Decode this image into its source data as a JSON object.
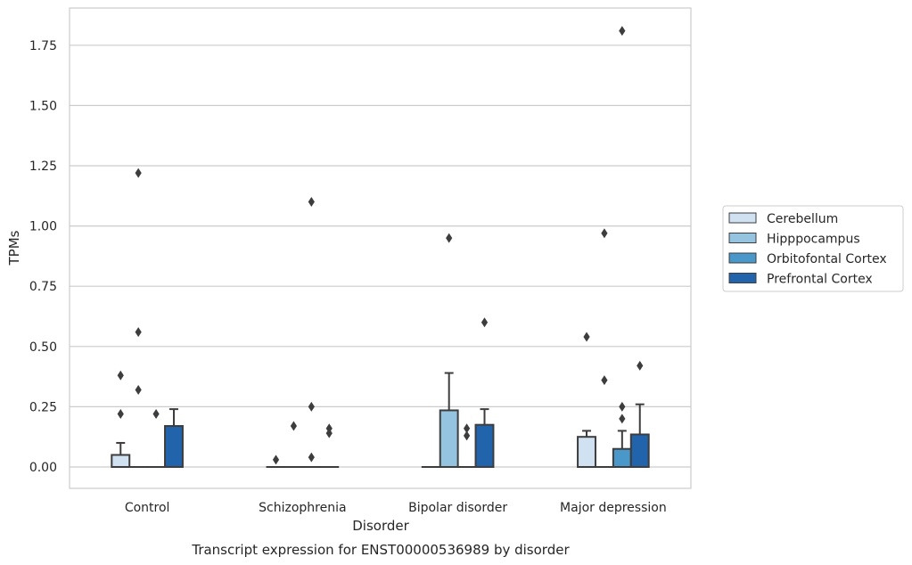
{
  "chart_data": {
    "type": "box",
    "xlabel": "Disorder",
    "ylabel": "TPMs",
    "caption": "Transcript expression for ENST00000536989 by disorder",
    "categories": [
      "Control",
      "Schizophrenia",
      "Bipolar disorder",
      "Major depression"
    ],
    "ylim": [
      -0.09,
      1.9
    ],
    "yticks": [
      0.0,
      0.25,
      0.5,
      0.75,
      1.0,
      1.25,
      1.5,
      1.75
    ],
    "ytick_labels": [
      "0.00",
      "0.25",
      "0.50",
      "0.75",
      "1.00",
      "1.25",
      "1.50",
      "1.75"
    ],
    "grid": "horizontal",
    "legend_position": "right",
    "series": [
      {
        "name": "Cerebellum",
        "color": "#d0e1f2",
        "boxes": [
          {
            "q1": 0.0,
            "median": 0.0,
            "q3": 0.05,
            "whisker_low": 0.0,
            "whisker_high": 0.1,
            "outliers": [
              0.22,
              0.38
            ]
          },
          {
            "q1": 0.0,
            "median": 0.0,
            "q3": 0.0,
            "whisker_low": 0.0,
            "whisker_high": 0.0,
            "outliers": [
              0.03
            ]
          },
          {
            "q1": 0.0,
            "median": 0.0,
            "q3": 0.0,
            "whisker_low": 0.0,
            "whisker_high": 0.0,
            "outliers": []
          },
          {
            "q1": 0.0,
            "median": 0.0,
            "q3": 0.125,
            "whisker_low": 0.0,
            "whisker_high": 0.15,
            "outliers": [
              0.54
            ]
          }
        ]
      },
      {
        "name": "Hipppocampus",
        "color": "#94c4df",
        "boxes": [
          {
            "q1": 0.0,
            "median": 0.0,
            "q3": 0.0,
            "whisker_low": 0.0,
            "whisker_high": 0.0,
            "outliers": [
              0.32,
              0.56,
              1.22
            ]
          },
          {
            "q1": 0.0,
            "median": 0.0,
            "q3": 0.0,
            "whisker_low": 0.0,
            "whisker_high": 0.0,
            "outliers": [
              0.17
            ]
          },
          {
            "q1": 0.0,
            "median": 0.0,
            "q3": 0.235,
            "whisker_low": 0.0,
            "whisker_high": 0.39,
            "outliers": [
              0.95
            ]
          },
          {
            "q1": 0.0,
            "median": 0.0,
            "q3": 0.0,
            "whisker_low": 0.0,
            "whisker_high": 0.0,
            "outliers": [
              0.36,
              0.97
            ]
          }
        ]
      },
      {
        "name": "Orbitofontal Cortex",
        "color": "#4a98c9",
        "boxes": [
          {
            "q1": 0.0,
            "median": 0.0,
            "q3": 0.0,
            "whisker_low": 0.0,
            "whisker_high": 0.0,
            "outliers": [
              0.22
            ]
          },
          {
            "q1": 0.0,
            "median": 0.0,
            "q3": 0.0,
            "whisker_low": 0.0,
            "whisker_high": 0.0,
            "outliers": [
              0.04,
              0.25,
              1.1
            ]
          },
          {
            "q1": 0.0,
            "median": 0.0,
            "q3": 0.0,
            "whisker_low": 0.0,
            "whisker_high": 0.0,
            "outliers": [
              0.13,
              0.16
            ]
          },
          {
            "q1": 0.0,
            "median": 0.0,
            "q3": 0.075,
            "whisker_low": 0.0,
            "whisker_high": 0.15,
            "outliers": [
              0.2,
              0.25,
              1.81
            ]
          }
        ]
      },
      {
        "name": "Prefrontal Cortex",
        "color": "#2164ab",
        "boxes": [
          {
            "q1": 0.0,
            "median": 0.0,
            "q3": 0.17,
            "whisker_low": 0.0,
            "whisker_high": 0.24,
            "outliers": []
          },
          {
            "q1": 0.0,
            "median": 0.0,
            "q3": 0.0,
            "whisker_low": 0.0,
            "whisker_high": 0.0,
            "outliers": [
              0.14,
              0.16
            ]
          },
          {
            "q1": 0.0,
            "median": 0.0,
            "q3": 0.175,
            "whisker_low": 0.0,
            "whisker_high": 0.24,
            "outliers": [
              0.6
            ]
          },
          {
            "q1": 0.0,
            "median": 0.0,
            "q3": 0.135,
            "whisker_low": 0.0,
            "whisker_high": 0.26,
            "outliers": [
              0.42
            ]
          }
        ]
      }
    ]
  }
}
